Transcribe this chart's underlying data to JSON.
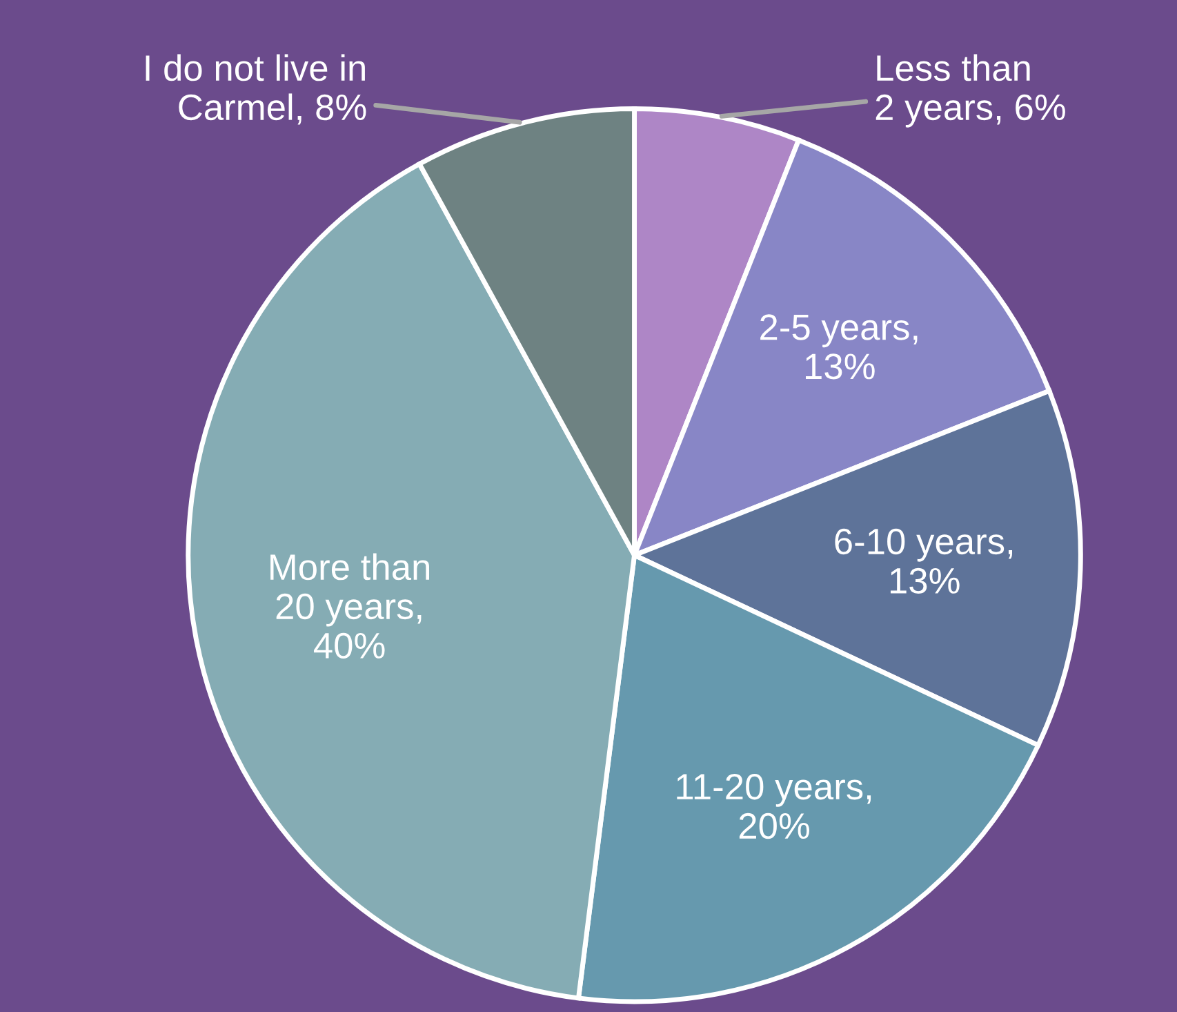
{
  "chart_data": {
    "type": "pie",
    "categories": [
      "Less than\n2 years, 6%",
      "2-5 years,\n13%",
      "6-10 years,\n13%",
      "11-20 years,\n20%",
      "More than\n20 years,\n40%",
      "I do not live in\nCarmel, 8%"
    ],
    "values": [
      6,
      13,
      13,
      20,
      40,
      8
    ],
    "colors": [
      "#ae86c6",
      "#8886c6",
      "#5e7399",
      "#6699ae",
      "#85acb4",
      "#6e8282"
    ],
    "legend": false
  }
}
